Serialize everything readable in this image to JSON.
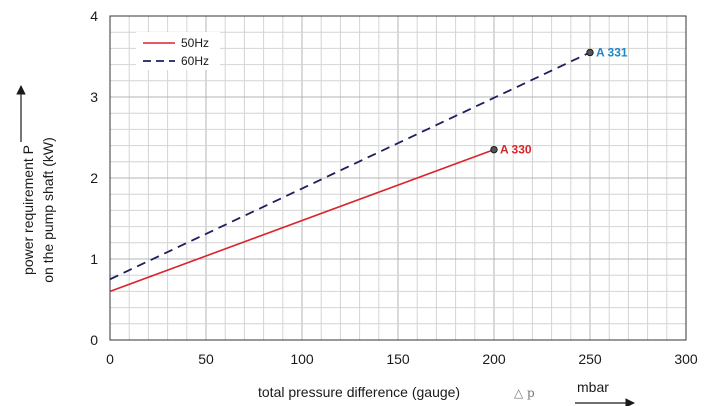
{
  "chart_data": {
    "type": "line",
    "title": "",
    "xlabel": "total pressure difference (gauge)",
    "xlabel_symbol": "△ p",
    "xunit": "mbar",
    "ylabel_line1": "power requirement P",
    "ylabel_line2": "on the pump shaft (kW)",
    "xlim": [
      0,
      300
    ],
    "ylim": [
      0,
      4
    ],
    "xticks": [
      0,
      50,
      100,
      150,
      200,
      250,
      300
    ],
    "yticks": [
      0,
      1,
      2,
      3,
      4
    ],
    "grid": true,
    "legend_position": "top-left",
    "series": [
      {
        "name": "50Hz",
        "style": "solid",
        "color": "#d9252a",
        "x": [
          0,
          200
        ],
        "y": [
          0.6,
          2.35
        ],
        "endpoint_label": "A 330",
        "endpoint_label_color": "#d9252a"
      },
      {
        "name": "60Hz",
        "style": "dashed",
        "color": "#1d1f5e",
        "x": [
          0,
          250
        ],
        "y": [
          0.75,
          3.55
        ],
        "endpoint_label": "A 331",
        "endpoint_label_color": "#1f86c7"
      }
    ]
  }
}
